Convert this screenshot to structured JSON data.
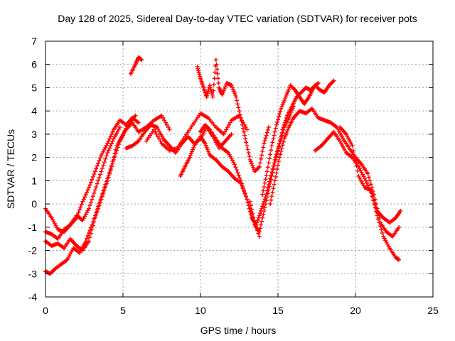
{
  "chart_data": {
    "type": "scatter",
    "title": "Day 128 of 2025, Sidereal Day-to-day VTEC variation (SDTVAR) for receiver pots",
    "xlabel": "GPS time / hours",
    "ylabel": "SDTVAR / TECUs",
    "xlim": [
      0,
      25
    ],
    "ylim": [
      -4,
      7
    ],
    "xticks": [
      0,
      5,
      10,
      15,
      20,
      25
    ],
    "yticks": [
      -4,
      -3,
      -2,
      -1,
      0,
      1,
      2,
      3,
      4,
      5,
      6,
      7
    ],
    "grid": true,
    "marker": "+",
    "color": "#ff0000",
    "series": [
      {
        "x": [
          0.0,
          0.4,
          0.8,
          1.2,
          1.6,
          2.0,
          2.4,
          2.8,
          3.2,
          3.6,
          4.0,
          4.4,
          4.8,
          5.2,
          5.6,
          6.0,
          6.5,
          7.0,
          7.5,
          8.0
        ],
        "y": [
          -1.6,
          -1.8,
          -1.7,
          -1.9,
          -1.5,
          -1.8,
          -2.0,
          -1.6,
          -0.6,
          0.2,
          1.0,
          1.9,
          2.7,
          3.2,
          3.5,
          3.1,
          3.3,
          3.6,
          3.8,
          3.2
        ]
      },
      {
        "x": [
          0.0,
          0.3,
          0.6,
          1.0,
          1.4,
          1.8,
          2.2,
          2.6,
          3.0,
          3.4,
          3.8,
          4.2,
          4.6,
          5.0,
          5.4,
          5.8
        ],
        "y": [
          -2.9,
          -3.0,
          -2.8,
          -2.6,
          -2.4,
          -1.9,
          -2.1,
          -1.6,
          -0.9,
          -0.1,
          0.7,
          1.5,
          2.5,
          3.0,
          3.5,
          3.8
        ]
      },
      {
        "x": [
          0.0,
          0.4,
          0.8,
          1.2,
          1.6,
          2.0,
          2.4,
          2.8,
          3.2,
          3.6,
          4.0,
          4.4,
          4.8,
          5.2,
          5.6,
          6.0
        ],
        "y": [
          -0.2,
          -0.6,
          -1.1,
          -1.2,
          -0.9,
          -0.6,
          0.1,
          0.7,
          1.4,
          2.1,
          2.6,
          3.2,
          3.6,
          3.4,
          3.7,
          3.5
        ]
      },
      {
        "x": [
          0.0,
          0.4,
          0.8,
          1.2,
          1.6,
          2.0,
          2.4,
          2.8,
          3.2,
          3.6,
          4.0,
          4.4,
          4.8
        ],
        "y": [
          -1.2,
          -1.3,
          -1.5,
          -1.1,
          -0.9,
          -0.5,
          -0.7,
          -0.2,
          0.6,
          1.4,
          2.2,
          2.8,
          3.3
        ]
      },
      {
        "x": [
          5.5,
          5.8,
          6.0,
          6.2
        ],
        "y": [
          5.6,
          6.0,
          6.3,
          6.2
        ]
      },
      {
        "x": [
          6.5,
          7.0,
          7.5,
          8.0,
          8.5,
          9.0,
          9.5,
          10.0,
          10.5,
          11.0,
          11.5,
          12.0,
          12.5,
          13.0
        ],
        "y": [
          2.7,
          3.2,
          2.6,
          2.3,
          2.4,
          2.9,
          3.4,
          3.9,
          3.7,
          3.3,
          3.0,
          3.6,
          3.8,
          3.2
        ]
      },
      {
        "x": [
          5.2,
          5.6,
          6.0,
          6.4,
          6.8,
          7.2,
          7.6,
          8.0,
          8.4,
          8.8,
          9.2,
          9.6,
          10.0,
          10.4,
          10.8,
          11.2,
          11.6,
          12.0
        ],
        "y": [
          2.4,
          2.5,
          2.7,
          3.1,
          3.4,
          3.3,
          2.8,
          2.5,
          2.2,
          2.6,
          2.9,
          2.6,
          2.8,
          3.3,
          2.9,
          2.4,
          2.7,
          3.0
        ]
      },
      {
        "x": [
          8.7,
          9.0,
          9.3,
          9.6,
          10.0,
          10.3,
          10.6,
          11.0,
          11.4,
          11.8,
          12.2,
          12.6,
          13.0,
          13.4,
          13.8
        ],
        "y": [
          1.2,
          1.6,
          2.0,
          2.5,
          2.9,
          2.6,
          2.1,
          1.9,
          1.6,
          1.4,
          1.1,
          0.9,
          0.2,
          -0.6,
          -1.4
        ]
      },
      {
        "x": [
          9.8,
          10.0,
          10.2,
          10.4,
          10.6,
          10.8,
          11.0,
          11.2,
          11.4,
          11.7,
          12.0,
          12.3,
          12.6,
          12.9,
          13.2,
          13.5,
          13.8,
          14.1,
          14.4
        ],
        "y": [
          5.9,
          5.4,
          5.0,
          4.6,
          5.1,
          4.6,
          6.2,
          5.0,
          4.7,
          5.2,
          5.1,
          4.6,
          3.7,
          2.8,
          1.9,
          1.4,
          1.6,
          2.6,
          3.3
        ]
      },
      {
        "x": [
          10.0,
          10.3,
          10.6,
          11.0,
          11.4,
          11.8,
          12.2,
          12.6,
          13.0,
          13.3,
          13.6,
          13.9,
          14.2,
          14.5,
          14.8,
          15.1,
          15.4,
          15.7,
          16.0
        ],
        "y": [
          3.1,
          3.4,
          3.2,
          2.8,
          2.4,
          2.2,
          1.7,
          1.0,
          0.2,
          -0.6,
          -0.9,
          -0.3,
          0.3,
          1.1,
          1.9,
          2.6,
          3.3,
          3.7,
          4.2
        ]
      },
      {
        "x": [
          13.2,
          13.5,
          13.8,
          14.1,
          14.4,
          14.7,
          15.0,
          15.3,
          15.6,
          15.9,
          16.2,
          16.5,
          16.8,
          17.1,
          17.4,
          17.7,
          18.0,
          18.3,
          18.6
        ],
        "y": [
          0.1,
          -0.9,
          -1.2,
          -0.3,
          0.6,
          1.5,
          2.3,
          3.2,
          3.8,
          4.2,
          4.6,
          4.8,
          5.0,
          4.9,
          5.1,
          4.9,
          4.8,
          5.1,
          5.3
        ]
      },
      {
        "x": [
          14.0,
          14.3,
          14.6,
          14.9,
          15.2,
          15.5,
          15.8,
          16.1,
          16.4,
          16.7,
          17.0,
          17.3,
          17.6
        ],
        "y": [
          0.4,
          1.4,
          2.5,
          3.4,
          4.1,
          4.6,
          5.1,
          4.9,
          4.6,
          4.3,
          4.6,
          5.0,
          5.2
        ]
      },
      {
        "x": [
          14.5,
          14.8,
          15.1,
          15.4,
          15.7,
          16.0,
          16.4,
          16.8,
          17.2,
          17.6
        ],
        "y": [
          0.0,
          1.0,
          2.0,
          2.8,
          3.3,
          3.7,
          4.0,
          3.9,
          4.1,
          3.7
        ]
      },
      {
        "x": [
          17.6,
          18.0,
          18.4,
          18.8,
          19.2,
          19.6,
          20.0,
          20.4,
          20.8,
          21.2,
          21.6,
          22.0,
          22.4,
          22.8
        ],
        "y": [
          3.7,
          3.6,
          3.5,
          3.3,
          2.8,
          2.4,
          2.0,
          1.7,
          1.3,
          0.4,
          -0.8,
          -1.2,
          -1.4,
          -1.0
        ]
      },
      {
        "x": [
          17.4,
          17.8,
          18.2,
          18.6,
          19.0,
          19.4,
          19.8,
          20.2,
          20.6,
          21.0,
          21.4,
          21.8,
          22.2,
          22.6,
          22.8
        ],
        "y": [
          2.3,
          2.5,
          2.8,
          3.1,
          2.7,
          2.2,
          2.0,
          1.6,
          1.1,
          0.5,
          -0.5,
          -1.4,
          -1.9,
          -2.3,
          -2.4
        ]
      },
      {
        "x": [
          19.0,
          19.4,
          19.8,
          20.2,
          20.6,
          21.0,
          21.4,
          21.8,
          22.2,
          22.6,
          22.9
        ],
        "y": [
          3.3,
          3.0,
          2.5,
          1.2,
          0.7,
          0.6,
          -0.3,
          -0.6,
          -0.8,
          -0.6,
          -0.3
        ]
      }
    ]
  }
}
